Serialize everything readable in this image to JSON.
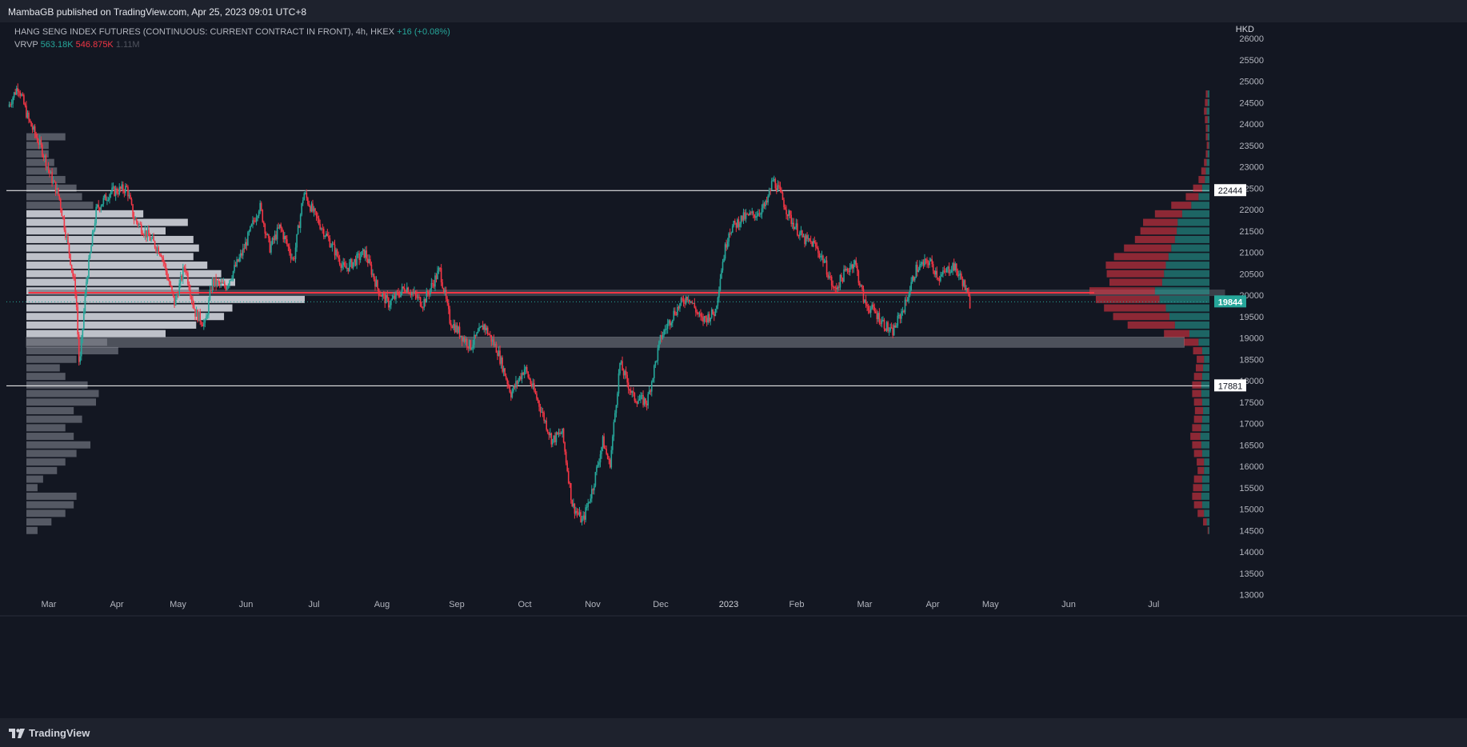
{
  "header": {
    "publisher": "MambaGB published on TradingView.com, Apr 25, 2023 09:01 UTC+8",
    "symbol": "HANG SENG INDEX FUTURES (CONTINUOUS: CURRENT CONTRACT IN FRONT), 4h, HKEX",
    "change": "+16 (+0.08%)",
    "indicator": "VRVP",
    "vol_up": "563.18K",
    "vol_down": "546.875K",
    "vol_total": "1.11M"
  },
  "footer": {
    "brand": "TradingView"
  },
  "colors": {
    "bg": "#131722",
    "up": "#26a69a",
    "down": "#f23645",
    "grid": "#1e222d",
    "axis_text": "#b2b5be"
  },
  "chart_data": {
    "type": "candlestick",
    "title": "HANG SENG INDEX FUTURES (CONTINUOUS: CURRENT CONTRACT IN FRONT), 4h, HKEX",
    "currency": "HKD",
    "ylim": [
      13000,
      26000
    ],
    "y_ticks": [
      13000,
      13500,
      14000,
      14500,
      15000,
      15500,
      16000,
      16500,
      17000,
      17500,
      18000,
      18500,
      19000,
      19500,
      20000,
      20500,
      21000,
      21500,
      22000,
      22500,
      23000,
      23500,
      24000,
      24500,
      25000,
      25500,
      26000
    ],
    "x_ticks": [
      {
        "label": "Mar",
        "t": 0.6
      },
      {
        "label": "Apr",
        "t": 1.6
      },
      {
        "label": "May",
        "t": 2.5
      },
      {
        "label": "Jun",
        "t": 3.5
      },
      {
        "label": "Jul",
        "t": 4.5
      },
      {
        "label": "Aug",
        "t": 5.5
      },
      {
        "label": "Sep",
        "t": 6.6
      },
      {
        "label": "Oct",
        "t": 7.6
      },
      {
        "label": "Nov",
        "t": 8.6
      },
      {
        "label": "Dec",
        "t": 9.6
      },
      {
        "label": "2023",
        "t": 10.6
      },
      {
        "label": "Feb",
        "t": 11.6
      },
      {
        "label": "Mar",
        "t": 12.6
      },
      {
        "label": "Apr",
        "t": 13.6
      },
      {
        "label": "May",
        "t": 14.45
      },
      {
        "label": "Jun",
        "t": 15.6
      },
      {
        "label": "Jul",
        "t": 16.85
      }
    ],
    "price_path": [
      [
        0.0,
        24400
      ],
      [
        0.15,
        24900
      ],
      [
        0.3,
        24100
      ],
      [
        0.5,
        23400
      ],
      [
        0.6,
        22900
      ],
      [
        0.75,
        22300
      ],
      [
        0.9,
        21000
      ],
      [
        1.0,
        20000
      ],
      [
        1.05,
        18250
      ],
      [
        1.15,
        20300
      ],
      [
        1.3,
        22000
      ],
      [
        1.5,
        22400
      ],
      [
        1.75,
        22500
      ],
      [
        1.85,
        21800
      ],
      [
        2.0,
        21500
      ],
      [
        2.25,
        21000
      ],
      [
        2.45,
        19800
      ],
      [
        2.6,
        20700
      ],
      [
        2.75,
        19600
      ],
      [
        2.9,
        19300
      ],
      [
        3.0,
        20300
      ],
      [
        3.2,
        20200
      ],
      [
        3.45,
        21000
      ],
      [
        3.7,
        22100
      ],
      [
        3.85,
        21100
      ],
      [
        4.0,
        21600
      ],
      [
        4.2,
        20800
      ],
      [
        4.35,
        22400
      ],
      [
        4.5,
        21900
      ],
      [
        4.75,
        21200
      ],
      [
        4.95,
        20600
      ],
      [
        5.25,
        21000
      ],
      [
        5.45,
        20100
      ],
      [
        5.6,
        19800
      ],
      [
        5.85,
        20200
      ],
      [
        6.1,
        19800
      ],
      [
        6.35,
        20600
      ],
      [
        6.5,
        19400
      ],
      [
        6.8,
        18800
      ],
      [
        7.0,
        19300
      ],
      [
        7.2,
        18700
      ],
      [
        7.4,
        17700
      ],
      [
        7.6,
        18300
      ],
      [
        7.8,
        17500
      ],
      [
        8.0,
        16600
      ],
      [
        8.15,
        16800
      ],
      [
        8.3,
        15100
      ],
      [
        8.45,
        14700
      ],
      [
        8.6,
        15500
      ],
      [
        8.75,
        16600
      ],
      [
        8.85,
        16000
      ],
      [
        9.0,
        18400
      ],
      [
        9.2,
        17600
      ],
      [
        9.4,
        17500
      ],
      [
        9.6,
        19000
      ],
      [
        9.8,
        19600
      ],
      [
        10.0,
        20000
      ],
      [
        10.2,
        19400
      ],
      [
        10.4,
        19600
      ],
      [
        10.5,
        20700
      ],
      [
        10.6,
        21500
      ],
      [
        10.8,
        21800
      ],
      [
        11.0,
        21900
      ],
      [
        11.15,
        22100
      ],
      [
        11.25,
        22700
      ],
      [
        11.35,
        22400
      ],
      [
        11.5,
        21800
      ],
      [
        11.7,
        21300
      ],
      [
        11.85,
        21200
      ],
      [
        12.0,
        20800
      ],
      [
        12.15,
        20100
      ],
      [
        12.3,
        20500
      ],
      [
        12.45,
        20800
      ],
      [
        12.6,
        19800
      ],
      [
        12.75,
        19600
      ],
      [
        12.9,
        19300
      ],
      [
        13.0,
        19100
      ],
      [
        13.2,
        19800
      ],
      [
        13.35,
        20600
      ],
      [
        13.55,
        20800
      ],
      [
        13.7,
        20400
      ],
      [
        13.9,
        20700
      ],
      [
        14.05,
        20300
      ],
      [
        14.15,
        19800
      ]
    ],
    "last_price": 19844,
    "levels": [
      {
        "price": 22444,
        "label": "22444"
      },
      {
        "price": 17881,
        "label": "17881"
      }
    ],
    "zones": [
      {
        "from": 19980,
        "to": 20130,
        "t0": 0.3,
        "t1": 17.9,
        "type": "poc"
      },
      {
        "from": 18780,
        "to": 19020,
        "t0": 0.3,
        "t1": 17.3,
        "type": "zone"
      }
    ],
    "left_profile": {
      "bins": [
        {
          "price": 23700,
          "vol": 14
        },
        {
          "price": 23500,
          "vol": 8
        },
        {
          "price": 23300,
          "vol": 8
        },
        {
          "price": 23100,
          "vol": 10
        },
        {
          "price": 22900,
          "vol": 11
        },
        {
          "price": 22700,
          "vol": 14
        },
        {
          "price": 22500,
          "vol": 18
        },
        {
          "price": 22300,
          "vol": 20
        },
        {
          "price": 22100,
          "vol": 24
        },
        {
          "price": 21900,
          "vol": 42
        },
        {
          "price": 21700,
          "vol": 58
        },
        {
          "price": 21500,
          "vol": 50
        },
        {
          "price": 21300,
          "vol": 60
        },
        {
          "price": 21100,
          "vol": 62
        },
        {
          "price": 20900,
          "vol": 60
        },
        {
          "price": 20700,
          "vol": 65
        },
        {
          "price": 20500,
          "vol": 70
        },
        {
          "price": 20300,
          "vol": 75
        },
        {
          "price": 20100,
          "vol": 62
        },
        {
          "price": 19900,
          "vol": 100
        },
        {
          "price": 19700,
          "vol": 74
        },
        {
          "price": 19500,
          "vol": 71
        },
        {
          "price": 19300,
          "vol": 61
        },
        {
          "price": 19100,
          "vol": 50
        },
        {
          "price": 18900,
          "vol": 29
        },
        {
          "price": 18700,
          "vol": 33
        },
        {
          "price": 18500,
          "vol": 18
        },
        {
          "price": 18300,
          "vol": 12
        },
        {
          "price": 18100,
          "vol": 14
        },
        {
          "price": 17900,
          "vol": 22
        },
        {
          "price": 17700,
          "vol": 26
        },
        {
          "price": 17500,
          "vol": 25
        },
        {
          "price": 17300,
          "vol": 17
        },
        {
          "price": 17100,
          "vol": 20
        },
        {
          "price": 16900,
          "vol": 14
        },
        {
          "price": 16700,
          "vol": 17
        },
        {
          "price": 16500,
          "vol": 23
        },
        {
          "price": 16300,
          "vol": 18
        },
        {
          "price": 16100,
          "vol": 14
        },
        {
          "price": 15900,
          "vol": 11
        },
        {
          "price": 15700,
          "vol": 6
        },
        {
          "price": 15500,
          "vol": 4
        },
        {
          "price": 15300,
          "vol": 18
        },
        {
          "price": 15100,
          "vol": 17
        },
        {
          "price": 14900,
          "vol": 14
        },
        {
          "price": 14700,
          "vol": 9
        },
        {
          "price": 14500,
          "vol": 4
        }
      ]
    },
    "right_profile": {
      "bins": [
        {
          "price": 24700,
          "up": 2,
          "down": 2
        },
        {
          "price": 24500,
          "up": 2,
          "down": 3
        },
        {
          "price": 24300,
          "up": 3,
          "down": 3
        },
        {
          "price": 24100,
          "up": 2,
          "down": 3
        },
        {
          "price": 23900,
          "up": 2,
          "down": 2
        },
        {
          "price": 23700,
          "up": 2,
          "down": 2
        },
        {
          "price": 23500,
          "up": 1,
          "down": 2
        },
        {
          "price": 23300,
          "up": 2,
          "down": 2
        },
        {
          "price": 23100,
          "up": 3,
          "down": 3
        },
        {
          "price": 22900,
          "up": 4,
          "down": 5
        },
        {
          "price": 22700,
          "up": 5,
          "down": 7
        },
        {
          "price": 22500,
          "up": 8,
          "down": 10
        },
        {
          "price": 22300,
          "up": 12,
          "down": 14
        },
        {
          "price": 22100,
          "up": 20,
          "down": 22
        },
        {
          "price": 21900,
          "up": 30,
          "down": 30
        },
        {
          "price": 21700,
          "up": 35,
          "down": 38
        },
        {
          "price": 21500,
          "up": 36,
          "down": 40
        },
        {
          "price": 21300,
          "up": 38,
          "down": 44
        },
        {
          "price": 21100,
          "up": 42,
          "down": 52
        },
        {
          "price": 20900,
          "up": 45,
          "down": 60
        },
        {
          "price": 20700,
          "up": 48,
          "down": 66
        },
        {
          "price": 20500,
          "up": 50,
          "down": 63
        },
        {
          "price": 20300,
          "up": 52,
          "down": 58
        },
        {
          "price": 20100,
          "up": 60,
          "down": 72
        },
        {
          "price": 19900,
          "up": 55,
          "down": 70
        },
        {
          "price": 19700,
          "up": 48,
          "down": 68
        },
        {
          "price": 19500,
          "up": 44,
          "down": 62
        },
        {
          "price": 19300,
          "up": 38,
          "down": 52
        },
        {
          "price": 19100,
          "up": 22,
          "down": 28
        },
        {
          "price": 18900,
          "up": 12,
          "down": 16
        },
        {
          "price": 18700,
          "up": 8,
          "down": 10
        },
        {
          "price": 18500,
          "up": 6,
          "down": 8
        },
        {
          "price": 18300,
          "up": 7,
          "down": 8
        },
        {
          "price": 18100,
          "up": 8,
          "down": 9
        },
        {
          "price": 17900,
          "up": 9,
          "down": 10
        },
        {
          "price": 17700,
          "up": 9,
          "down": 10
        },
        {
          "price": 17500,
          "up": 8,
          "down": 9
        },
        {
          "price": 17300,
          "up": 7,
          "down": 9
        },
        {
          "price": 17100,
          "up": 8,
          "down": 9
        },
        {
          "price": 16900,
          "up": 9,
          "down": 10
        },
        {
          "price": 16700,
          "up": 10,
          "down": 11
        },
        {
          "price": 16500,
          "up": 9,
          "down": 10
        },
        {
          "price": 16300,
          "up": 8,
          "down": 9
        },
        {
          "price": 16100,
          "up": 6,
          "down": 8
        },
        {
          "price": 15900,
          "up": 6,
          "down": 7
        },
        {
          "price": 15700,
          "up": 8,
          "down": 9
        },
        {
          "price": 15500,
          "up": 8,
          "down": 10
        },
        {
          "price": 15300,
          "up": 9,
          "down": 10
        },
        {
          "price": 15100,
          "up": 8,
          "down": 9
        },
        {
          "price": 14900,
          "up": 6,
          "down": 7
        },
        {
          "price": 14700,
          "up": 3,
          "down": 4
        },
        {
          "price": 14500,
          "up": 1,
          "down": 1
        }
      ]
    }
  }
}
